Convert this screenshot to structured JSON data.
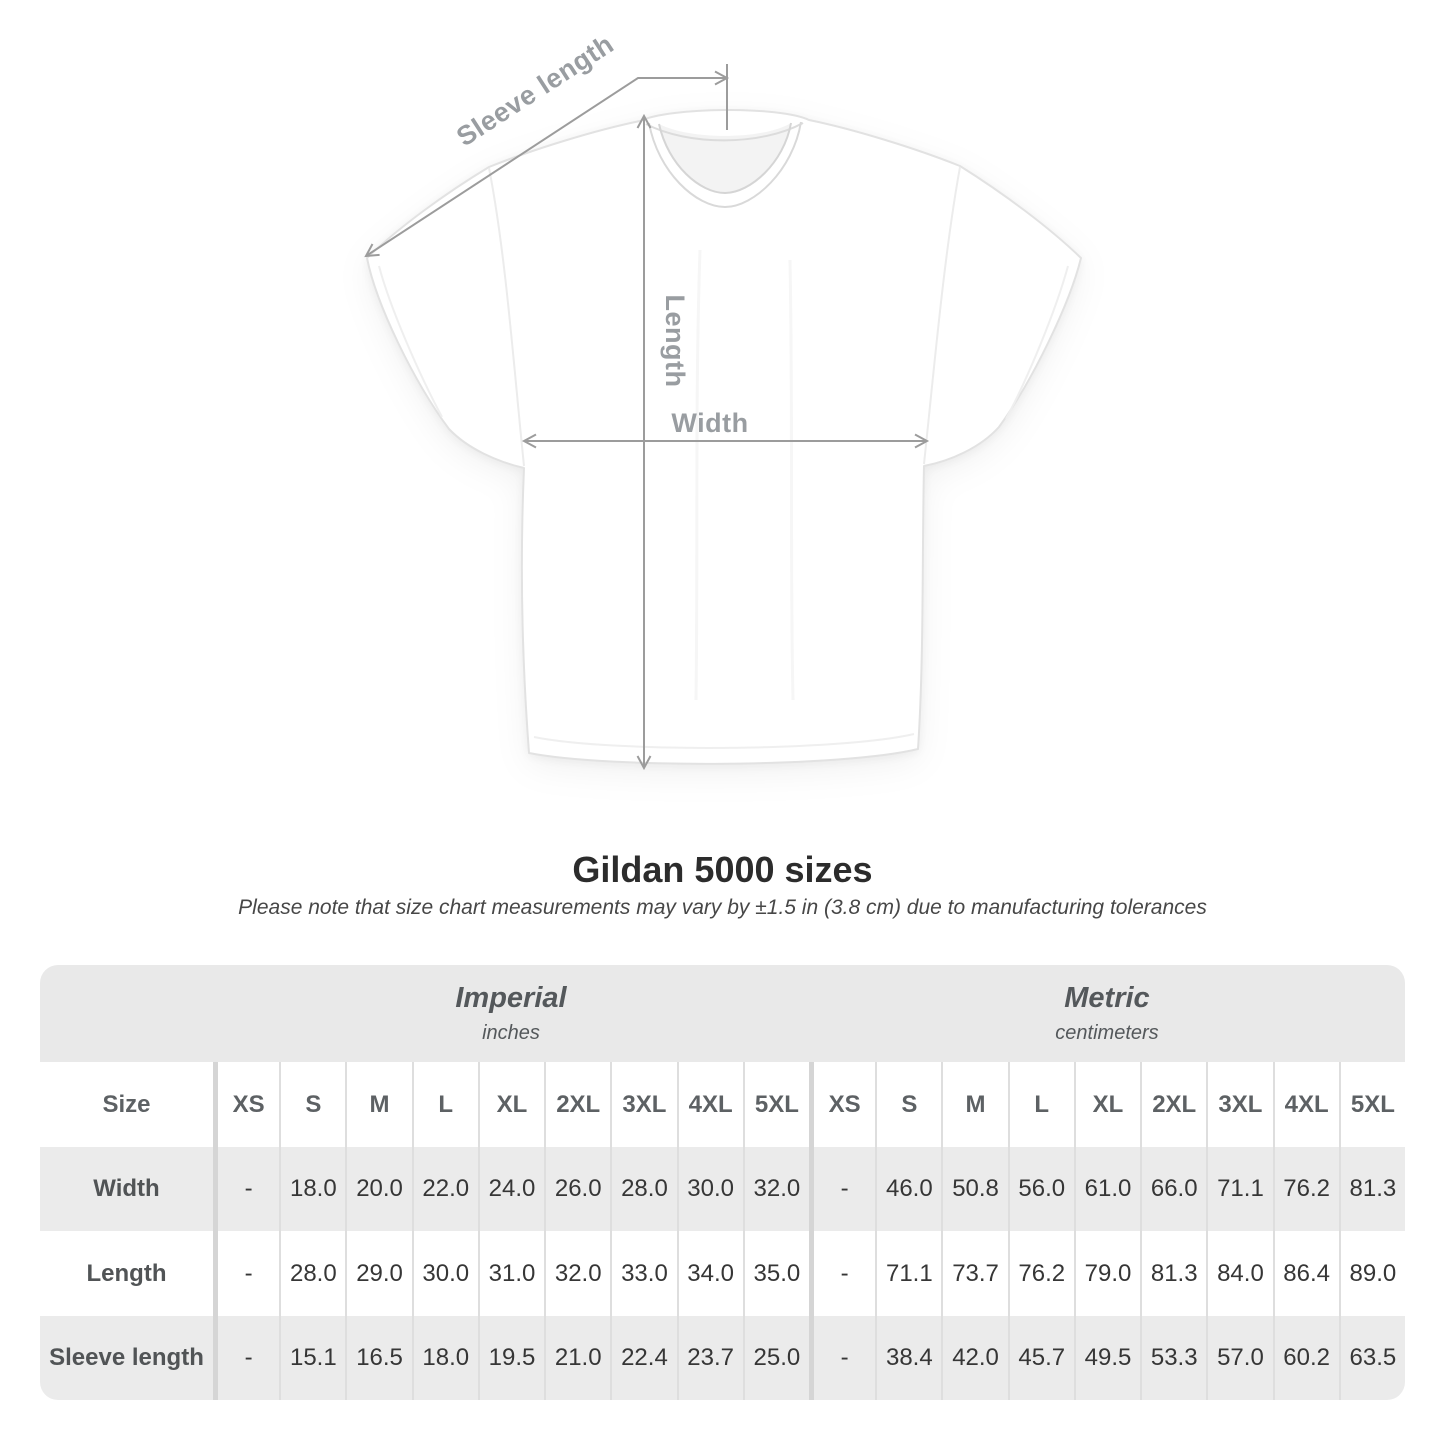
{
  "diagram": {
    "labels": {
      "sleeve_length": "Sleeve length",
      "length": "Length",
      "width": "Width"
    }
  },
  "header": {
    "title": "Gildan 5000 sizes",
    "subtitle": "Please note that size chart measurements may vary by ±1.5 in (3.8 cm) due to manufacturing tolerances"
  },
  "chart_data": {
    "type": "table",
    "title": "Gildan 5000 sizes",
    "note": "Please note that size chart measurements may vary by ±1.5 in (3.8 cm) due to manufacturing tolerances",
    "unit_groups": [
      {
        "name": "Imperial",
        "unit": "inches"
      },
      {
        "name": "Metric",
        "unit": "centimeters"
      }
    ],
    "size_column_header": "Size",
    "sizes": [
      "XS",
      "S",
      "M",
      "L",
      "XL",
      "2XL",
      "3XL",
      "4XL",
      "5XL"
    ],
    "rows": [
      {
        "label": "Width",
        "imperial": [
          "-",
          "18.0",
          "20.0",
          "22.0",
          "24.0",
          "26.0",
          "28.0",
          "30.0",
          "32.0"
        ],
        "metric": [
          "-",
          "46.0",
          "50.8",
          "56.0",
          "61.0",
          "66.0",
          "71.1",
          "76.2",
          "81.3"
        ]
      },
      {
        "label": "Length",
        "imperial": [
          "-",
          "28.0",
          "29.0",
          "30.0",
          "31.0",
          "32.0",
          "33.0",
          "34.0",
          "35.0"
        ],
        "metric": [
          "-",
          "71.1",
          "73.7",
          "76.2",
          "79.0",
          "81.3",
          "84.0",
          "86.4",
          "89.0"
        ]
      },
      {
        "label": "Sleeve length",
        "imperial": [
          "-",
          "15.1",
          "16.5",
          "18.0",
          "19.5",
          "21.0",
          "22.4",
          "23.7",
          "25.0"
        ],
        "metric": [
          "-",
          "38.4",
          "42.0",
          "45.7",
          "49.5",
          "53.3",
          "57.0",
          "60.2",
          "63.5"
        ]
      }
    ]
  },
  "colors": {
    "band": "#e9e9e9",
    "row_alt": "#ebebeb",
    "separator": "#dedede",
    "group_separator": "#d5d5d5",
    "measure_line": "#9c9c9c",
    "measure_label": "#999da1"
  }
}
